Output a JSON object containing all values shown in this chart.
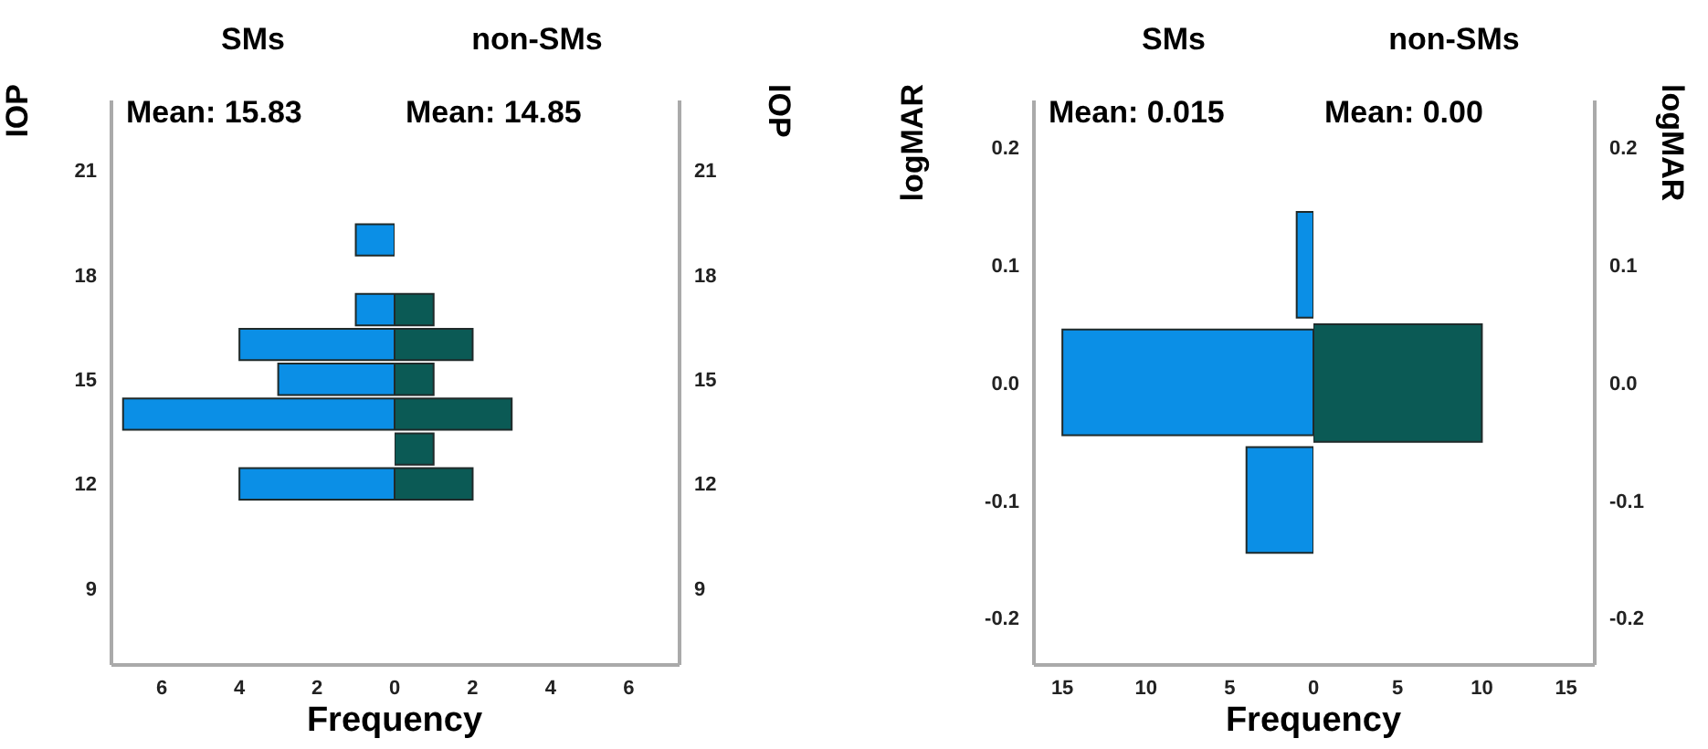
{
  "chart_data": [
    {
      "type": "histogram",
      "orientation": "horizontal",
      "title": "SMs",
      "ylabel": "IOP",
      "xlabel": "Frequency",
      "annotations": [
        "Mean: 15.83"
      ],
      "bins": [
        11.5,
        12.5,
        13.5,
        14.5,
        15.5,
        16.5,
        17.5,
        18.5,
        19.5
      ],
      "values": [
        4,
        0,
        7,
        3,
        4,
        1,
        0,
        1
      ],
      "color": "#0b8fe6",
      "xlim": [
        7.3,
        0
      ],
      "xticks": [
        6,
        4,
        2,
        0
      ],
      "ylim": [
        6.8,
        23
      ],
      "yticks": [
        9,
        12,
        15,
        18,
        21
      ]
    },
    {
      "type": "histogram",
      "orientation": "horizontal",
      "title": "non-SMs",
      "ylabel": "IOP",
      "annotations": [
        "Mean: 14.85"
      ],
      "bins": [
        11.5,
        12.5,
        13.5,
        14.5,
        15.5,
        16.5,
        17.5
      ],
      "values": [
        2,
        1,
        3,
        1,
        2,
        1
      ],
      "color": "#0b5a55",
      "xlim": [
        0,
        7.3
      ],
      "xticks": [
        2,
        4,
        6
      ],
      "ylim": [
        6.8,
        23
      ],
      "yticks": [
        9,
        12,
        15,
        18,
        21
      ]
    },
    {
      "type": "histogram",
      "orientation": "horizontal",
      "title": "SMs",
      "ylabel": "logMAR",
      "xlabel": "Frequency",
      "annotations": [
        "Mean: 0.015"
      ],
      "bins": [
        -0.15,
        -0.05,
        0.05,
        0.15
      ],
      "values": [
        4,
        15,
        1
      ],
      "color": "#0b8fe6",
      "xlim": [
        16.7,
        0
      ],
      "xticks": [
        15,
        10,
        5,
        0
      ],
      "ylim": [
        -0.24,
        0.24
      ],
      "yticks": [
        -0.2,
        -0.1,
        {
          "value": 0,
          "label": "0.0"
        },
        0.1,
        0.2
      ]
    },
    {
      "type": "histogram",
      "orientation": "horizontal",
      "title": "non-SMs",
      "ylabel": "logMAR",
      "annotations": [
        "Mean: 0.00"
      ],
      "bins": [
        -0.05,
        0.05
      ],
      "values": [
        10
      ],
      "color": "#0b5a55",
      "xlim": [
        0,
        16.7
      ],
      "xticks": [
        5,
        10,
        15
      ],
      "ylim": [
        -0.24,
        0.24
      ],
      "yticks": [
        -0.2,
        -0.1,
        {
          "value": 0,
          "label": "0.0"
        },
        0.1,
        0.2
      ]
    }
  ]
}
